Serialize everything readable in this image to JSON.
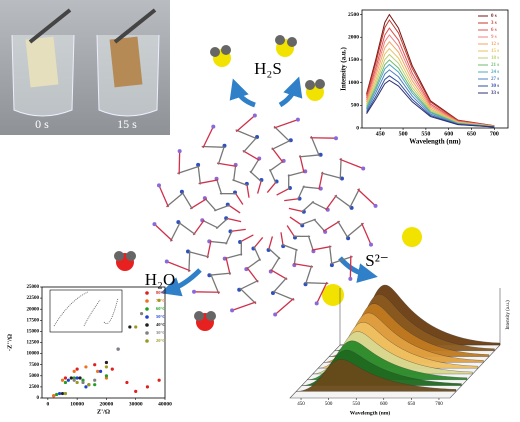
{
  "photos": {
    "labels": [
      "0 s",
      "15 s"
    ]
  },
  "molecules": {
    "h2s": "H₂S",
    "h2o": "H₂O",
    "s2": "S²⁻"
  },
  "chart_data": [
    {
      "type": "line",
      "x_label": "Wavelength (nm)",
      "y_label": "Intensity (a.u.)",
      "x": [
        420,
        440,
        460,
        470,
        490,
        520,
        560,
        620,
        700
      ],
      "xlim": [
        410,
        730
      ],
      "ylim": [
        0,
        2600
      ],
      "xticks": [
        450,
        500,
        550,
        600,
        650,
        700
      ],
      "yticks": [
        0,
        500,
        1000,
        1500,
        2000,
        2500
      ],
      "series": [
        {
          "name": "0 s",
          "color": "#7b1515",
          "values": [
            750,
            1500,
            2325,
            2500,
            2200,
            1375,
            600,
            175,
            50
          ]
        },
        {
          "name": "3 s",
          "color": "#c0392b",
          "values": [
            714,
            1428,
            2213,
            2380,
            2094,
            1309,
            571,
            167,
            48
          ]
        },
        {
          "name": "6 s",
          "color": "#e05050",
          "values": [
            660,
            1320,
            2046,
            2200,
            1936,
            1210,
            528,
            154,
            44
          ]
        },
        {
          "name": "9 s",
          "color": "#f08080",
          "values": [
            615,
            1230,
            1907,
            2050,
            1804,
            1128,
            492,
            144,
            41
          ]
        },
        {
          "name": "12 s",
          "color": "#f4a460",
          "values": [
            570,
            1140,
            1767,
            1900,
            1672,
            1045,
            456,
            133,
            38
          ]
        },
        {
          "name": "15 s",
          "color": "#e8c060",
          "values": [
            525,
            1050,
            1628,
            1750,
            1540,
            963,
            420,
            123,
            35
          ]
        },
        {
          "name": "18 s",
          "color": "#b8d070",
          "values": [
            486,
            972,
            1507,
            1620,
            1426,
            891,
            389,
            113,
            32
          ]
        },
        {
          "name": "21 s",
          "color": "#70b870",
          "values": [
            450,
            900,
            1395,
            1500,
            1320,
            825,
            360,
            105,
            30
          ]
        },
        {
          "name": "24 s",
          "color": "#50a8c0",
          "values": [
            420,
            840,
            1302,
            1400,
            1232,
            770,
            336,
            98,
            28
          ]
        },
        {
          "name": "27 s",
          "color": "#5080c0",
          "values": [
            384,
            768,
            1190,
            1280,
            1126,
            704,
            307,
            90,
            26
          ]
        },
        {
          "name": "30 s",
          "color": "#3050a0",
          "values": [
            345,
            690,
            1070,
            1150,
            1012,
            633,
            276,
            81,
            23
          ]
        },
        {
          "name": "33 s",
          "color": "#303070",
          "values": [
            315,
            630,
            977,
            1050,
            924,
            578,
            252,
            74,
            21
          ]
        }
      ]
    },
    {
      "type": "scatter",
      "x_label": "Z'/Ω",
      "y_label": "-Z''/Ω",
      "xlim": [
        -2000,
        40000
      ],
      "ylim": [
        0,
        25000
      ],
      "xticks": [
        0,
        10000,
        20000,
        30000,
        40000
      ],
      "yticks": [
        0,
        2500,
        5000,
        7500,
        10000,
        12500,
        15000,
        17500,
        20000,
        22500,
        25000
      ],
      "series": [
        {
          "name": "80°C",
          "color": "#e02020",
          "x": [
            2000,
            6000,
            10000,
            16000,
            22000,
            27000,
            30000,
            34000,
            38000
          ],
          "values": [
            500,
            4500,
            6500,
            7500,
            6500,
            3500,
            1500,
            2500,
            4000
          ]
        },
        {
          "name": "70°C",
          "color": "#f07020",
          "x": [
            2000,
            5000,
            9000,
            13000,
            17000,
            20000
          ],
          "values": [
            500,
            4000,
            6000,
            7000,
            6000,
            4500
          ]
        },
        {
          "name": "60°C",
          "color": "#20a020",
          "x": [
            3000,
            6000,
            9000,
            12000,
            16000,
            20000
          ],
          "values": [
            800,
            3500,
            4500,
            4000,
            3000,
            5000
          ]
        },
        {
          "name": "50°C",
          "color": "#2040d0",
          "x": [
            4000,
            7000,
            10000,
            13000,
            18000,
            24000
          ],
          "values": [
            1000,
            4000,
            4500,
            2500,
            6000,
            11000
          ]
        },
        {
          "name": "40°C",
          "color": "#202020",
          "x": [
            5000,
            8000,
            11000,
            14000,
            20000,
            28000
          ],
          "values": [
            1000,
            4500,
            4500,
            3000,
            8000,
            16000
          ]
        },
        {
          "name": "30°C",
          "color": "#808080",
          "x": [
            6000,
            9000,
            12000,
            16000,
            24000,
            32000
          ],
          "values": [
            1000,
            4000,
            3500,
            4000,
            11000,
            19000
          ]
        },
        {
          "name": "20°C",
          "color": "#9a9a20",
          "x": [
            6000,
            10000,
            14000,
            20000,
            30000,
            38000
          ],
          "values": [
            1000,
            3500,
            3000,
            7000,
            16000,
            22000
          ]
        }
      ]
    }
  ],
  "waterfall": {
    "x_label": "Wavelength (nm)",
    "y_label": "Intensity (a.u.)",
    "xlim": [
      430,
      720
    ],
    "xticks": [
      450,
      500,
      550,
      600,
      650,
      700
    ]
  }
}
